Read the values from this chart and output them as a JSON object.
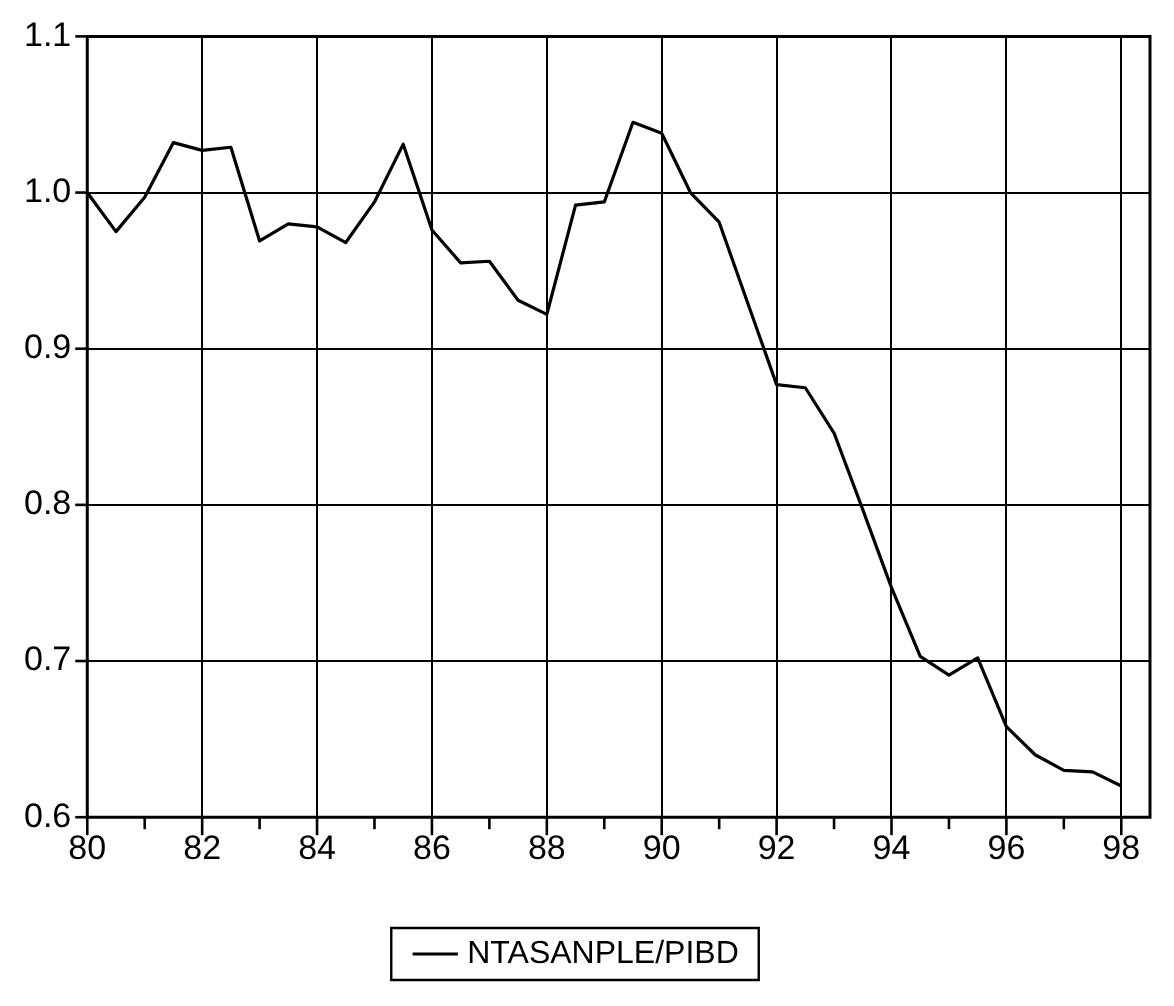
{
  "chart_data": {
    "type": "line",
    "x": [
      80,
      80.5,
      81,
      81.5,
      82,
      82.5,
      83,
      83.5,
      84,
      84.5,
      85,
      85.5,
      86,
      86.5,
      87,
      87.5,
      88,
      88.5,
      89,
      89.5,
      90,
      90.5,
      91,
      91.5,
      92,
      92.5,
      93,
      93.5,
      94,
      94.5,
      95,
      95.5,
      96,
      96.5,
      97,
      97.5,
      98
    ],
    "series": [
      {
        "name": "NTASANPLE/PIBD",
        "color": "#000000",
        "values": [
          1.0,
          0.975,
          0.997,
          1.032,
          1.027,
          1.029,
          0.969,
          0.98,
          0.978,
          0.968,
          0.994,
          1.031,
          0.976,
          0.955,
          0.956,
          0.931,
          0.922,
          0.992,
          0.994,
          1.045,
          1.038,
          1.0,
          0.981,
          0.929,
          0.877,
          0.875,
          0.846,
          0.797,
          0.747,
          0.703,
          0.691,
          0.702,
          0.658,
          0.64,
          0.63,
          0.629,
          0.62
        ]
      }
    ],
    "xlim": [
      80,
      98.5
    ],
    "xticks": [
      80,
      {
        "value": 81,
        "label": null
      },
      82,
      {
        "value": 83,
        "label": null
      },
      84,
      {
        "value": 85,
        "label": null
      },
      86,
      {
        "value": 87,
        "label": null
      },
      88,
      {
        "value": 89,
        "label": null
      },
      90,
      {
        "value": 91,
        "label": null
      },
      92,
      {
        "value": 93,
        "label": null
      },
      94,
      {
        "value": 95,
        "label": null
      },
      96,
      {
        "value": 97,
        "label": null
      },
      98
    ],
    "ylim": [
      0.6,
      1.1
    ],
    "yticks": [
      0.6,
      0.7,
      0.8,
      0.9,
      {
        "value": 1,
        "label": "1.0"
      },
      1.1
    ],
    "grid": true,
    "legend": "bottom",
    "marker": "none",
    "line_style": "solid"
  }
}
